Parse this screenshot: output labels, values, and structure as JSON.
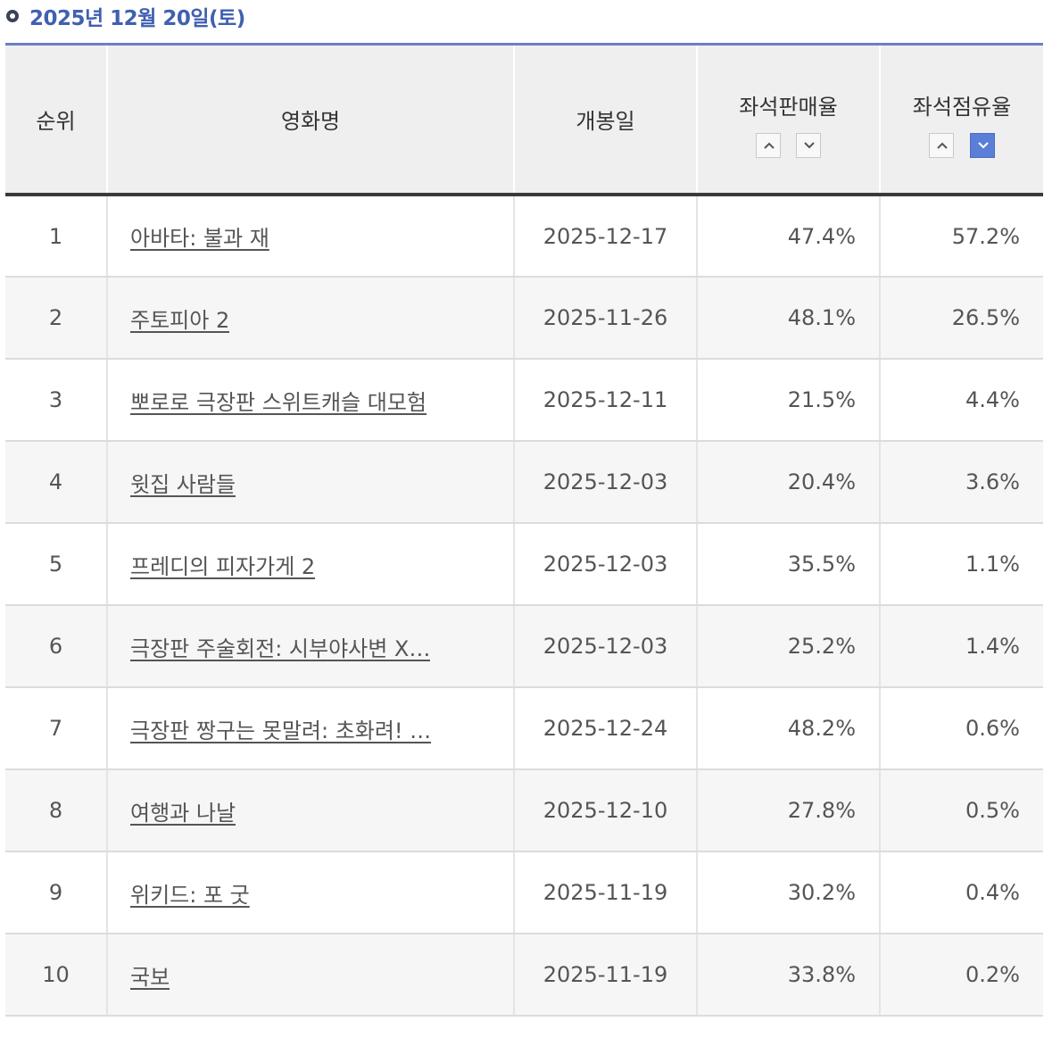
{
  "header": {
    "date_title": "2025년 12월 20일(토)"
  },
  "columns": {
    "rank": "순위",
    "title": "영화명",
    "release": "개봉일",
    "seat_sales": "좌석판매율",
    "seat_share": "좌석점유율"
  },
  "sort": {
    "seat_sales": {
      "asc": "up-icon",
      "desc": "down-icon",
      "active": "none"
    },
    "seat_share": {
      "asc": "up-icon",
      "desc": "down-icon",
      "active": "desc"
    },
    "active_color": "#5b7fd6"
  },
  "rows": [
    {
      "rank": "1",
      "title": "아바타: 불과 재",
      "release": "2025-12-17",
      "seat_sales": "47.4%",
      "seat_share": "57.2%"
    },
    {
      "rank": "2",
      "title": "주토피아 2",
      "release": "2025-11-26",
      "seat_sales": "48.1%",
      "seat_share": "26.5%"
    },
    {
      "rank": "3",
      "title": "뽀로로 극장판 스위트캐슬 대모험",
      "release": "2025-12-11",
      "seat_sales": "21.5%",
      "seat_share": "4.4%"
    },
    {
      "rank": "4",
      "title": "윗집 사람들",
      "release": "2025-12-03",
      "seat_sales": "20.4%",
      "seat_share": "3.6%"
    },
    {
      "rank": "5",
      "title": "프레디의 피자가게 2",
      "release": "2025-12-03",
      "seat_sales": "35.5%",
      "seat_share": "1.1%"
    },
    {
      "rank": "6",
      "title": "극장판 주술회전: 시부야사변 X…",
      "release": "2025-12-03",
      "seat_sales": "25.2%",
      "seat_share": "1.4%"
    },
    {
      "rank": "7",
      "title": "극장판 짱구는 못말려: 초화려! …",
      "release": "2025-12-24",
      "seat_sales": "48.2%",
      "seat_share": "0.6%"
    },
    {
      "rank": "8",
      "title": "여행과 나날",
      "release": "2025-12-10",
      "seat_sales": "27.8%",
      "seat_share": "0.5%"
    },
    {
      "rank": "9",
      "title": "위키드: 포 굿",
      "release": "2025-11-19",
      "seat_sales": "30.2%",
      "seat_share": "0.4%"
    },
    {
      "rank": "10",
      "title": "국보",
      "release": "2025-11-19",
      "seat_sales": "33.8%",
      "seat_share": "0.2%"
    }
  ]
}
